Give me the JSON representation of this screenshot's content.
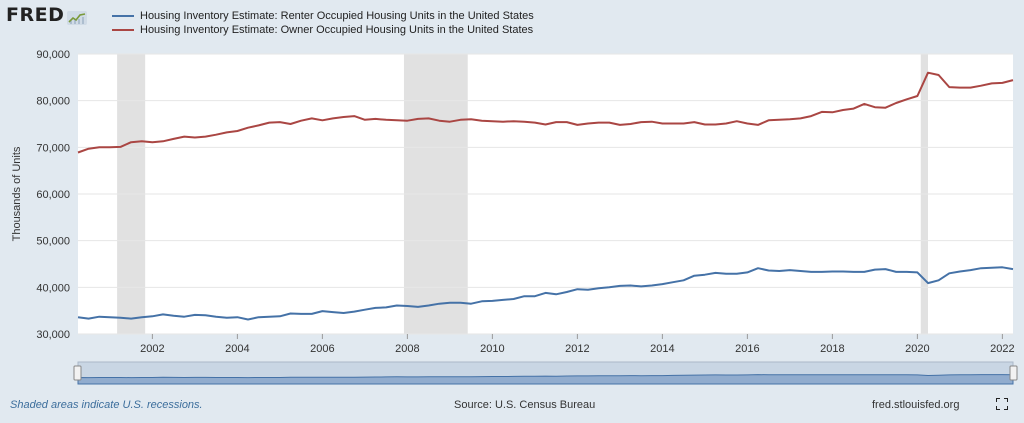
{
  "header": {
    "logo_text": "FRED"
  },
  "footer": {
    "note": "Shaded areas indicate U.S. recessions.",
    "source": "Source: U.S. Census Bureau",
    "site": "fred.stlouisfed.org"
  },
  "icons": {
    "logo": "fred-chart-icon",
    "fullscreen": "fullscreen-icon"
  },
  "chart_data": {
    "type": "line",
    "title": "",
    "xlabel": "",
    "ylabel": "Thousands of Units",
    "ylim": [
      30000,
      90000
    ],
    "xlim": [
      2000.25,
      2022.25
    ],
    "yticks": [
      30000,
      40000,
      50000,
      60000,
      70000,
      80000,
      90000
    ],
    "ytick_labels": [
      "30,000",
      "40,000",
      "50,000",
      "60,000",
      "70,000",
      "80,000",
      "90,000"
    ],
    "xticks": [
      2002,
      2004,
      2006,
      2008,
      2010,
      2012,
      2014,
      2016,
      2018,
      2020,
      2022
    ],
    "xtick_labels": [
      "2002",
      "2004",
      "2006",
      "2008",
      "2010",
      "2012",
      "2014",
      "2016",
      "2018",
      "2020",
      "2022"
    ],
    "grid": true,
    "legend_position": "top-left",
    "recessions": [
      [
        2001.17,
        2001.83
      ],
      [
        2007.92,
        2009.42
      ],
      [
        2020.08,
        2020.25
      ]
    ],
    "series": [
      {
        "name": "Housing Inventory Estimate: Renter Occupied Housing Units in the United States",
        "color": "#4572a7",
        "x": [
          2000.25,
          2000.5,
          2000.75,
          2001,
          2001.25,
          2001.5,
          2001.75,
          2002,
          2002.25,
          2002.5,
          2002.75,
          2003,
          2003.25,
          2003.5,
          2003.75,
          2004,
          2004.25,
          2004.5,
          2004.75,
          2005,
          2005.25,
          2005.5,
          2005.75,
          2006,
          2006.25,
          2006.5,
          2006.75,
          2007,
          2007.25,
          2007.5,
          2007.75,
          2008,
          2008.25,
          2008.5,
          2008.75,
          2009,
          2009.25,
          2009.5,
          2009.75,
          2010,
          2010.25,
          2010.5,
          2010.75,
          2011,
          2011.25,
          2011.5,
          2011.75,
          2012,
          2012.25,
          2012.5,
          2012.75,
          2013,
          2013.25,
          2013.5,
          2013.75,
          2014,
          2014.25,
          2014.5,
          2014.75,
          2015,
          2015.25,
          2015.5,
          2015.75,
          2016,
          2016.25,
          2016.5,
          2016.75,
          2017,
          2017.25,
          2017.5,
          2017.75,
          2018,
          2018.25,
          2018.5,
          2018.75,
          2019,
          2019.25,
          2019.5,
          2019.75,
          2020,
          2020.25,
          2020.5,
          2020.75,
          2021,
          2021.25,
          2021.5,
          2021.75,
          2022,
          2022.25
        ],
        "values": [
          33600,
          33300,
          33700,
          33600,
          33500,
          33300,
          33600,
          33800,
          34200,
          33900,
          33700,
          34100,
          34000,
          33700,
          33500,
          33600,
          33100,
          33600,
          33700,
          33800,
          34400,
          34300,
          34300,
          34900,
          34700,
          34500,
          34800,
          35200,
          35600,
          35700,
          36100,
          36000,
          35800,
          36100,
          36500,
          36700,
          36700,
          36500,
          37000,
          37100,
          37300,
          37500,
          38100,
          38100,
          38800,
          38500,
          39000,
          39600,
          39500,
          39800,
          40000,
          40300,
          40400,
          40200,
          40400,
          40700,
          41100,
          41500,
          42500,
          42700,
          43100,
          42900,
          42900,
          43200,
          44100,
          43600,
          43500,
          43700,
          43500,
          43300,
          43300,
          43400,
          43400,
          43300,
          43300,
          43800,
          43900,
          43300,
          43300,
          43200,
          40900,
          41500,
          43000,
          43400,
          43700,
          44100,
          44200,
          44300,
          43900
        ]
      },
      {
        "name": "Housing Inventory Estimate: Owner Occupied Housing Units in the United States",
        "color": "#aa4643",
        "x": [
          2000.25,
          2000.5,
          2000.75,
          2001,
          2001.25,
          2001.5,
          2001.75,
          2002,
          2002.25,
          2002.5,
          2002.75,
          2003,
          2003.25,
          2003.5,
          2003.75,
          2004,
          2004.25,
          2004.5,
          2004.75,
          2005,
          2005.25,
          2005.5,
          2005.75,
          2006,
          2006.25,
          2006.5,
          2006.75,
          2007,
          2007.25,
          2007.5,
          2007.75,
          2008,
          2008.25,
          2008.5,
          2008.75,
          2009,
          2009.25,
          2009.5,
          2009.75,
          2010,
          2010.25,
          2010.5,
          2010.75,
          2011,
          2011.25,
          2011.5,
          2011.75,
          2012,
          2012.25,
          2012.5,
          2012.75,
          2013,
          2013.25,
          2013.5,
          2013.75,
          2014,
          2014.25,
          2014.5,
          2014.75,
          2015,
          2015.25,
          2015.5,
          2015.75,
          2016,
          2016.25,
          2016.5,
          2016.75,
          2017,
          2017.25,
          2017.5,
          2017.75,
          2018,
          2018.25,
          2018.5,
          2018.75,
          2019,
          2019.25,
          2019.5,
          2019.75,
          2020,
          2020.25,
          2020.5,
          2020.75,
          2021,
          2021.25,
          2021.5,
          2021.75,
          2022,
          2022.25
        ],
        "values": [
          68900,
          69700,
          70000,
          70000,
          70100,
          71100,
          71300,
          71100,
          71300,
          71800,
          72300,
          72100,
          72300,
          72700,
          73200,
          73500,
          74200,
          74700,
          75300,
          75400,
          75000,
          75700,
          76200,
          75800,
          76200,
          76500,
          76700,
          75900,
          76100,
          75900,
          75800,
          75700,
          76100,
          76200,
          75700,
          75500,
          75900,
          76000,
          75700,
          75600,
          75500,
          75600,
          75500,
          75300,
          74900,
          75400,
          75400,
          74800,
          75100,
          75300,
          75300,
          74800,
          75000,
          75400,
          75500,
          75100,
          75100,
          75100,
          75400,
          74900,
          74900,
          75100,
          75600,
          75100,
          74800,
          75800,
          75900,
          76000,
          76200,
          76700,
          77600,
          77500,
          78000,
          78300,
          79300,
          78600,
          78500,
          79500,
          80300,
          81000,
          86000,
          85500,
          82900,
          82800,
          82800,
          83200,
          83700,
          83800,
          84400
        ]
      }
    ]
  }
}
